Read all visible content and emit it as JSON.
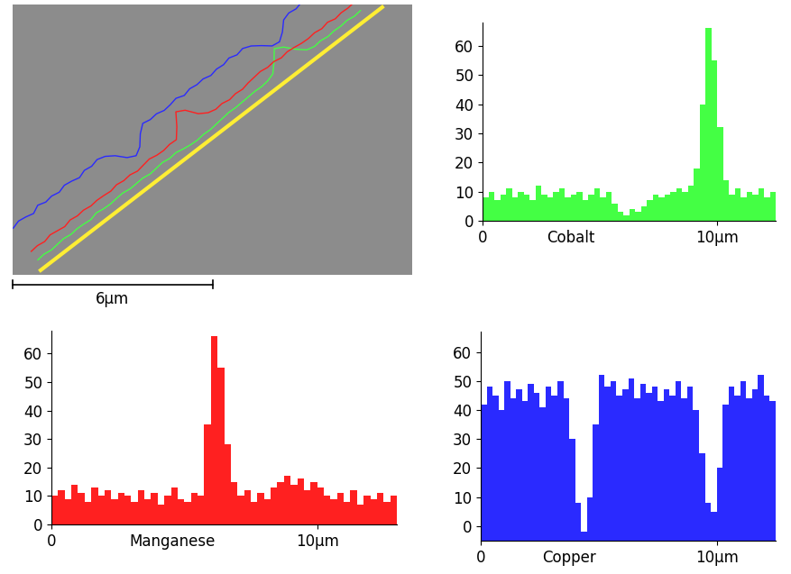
{
  "image": {
    "width": 12,
    "scale_bar": {
      "label": "6μm",
      "length": 6
    }
  },
  "chart_data": [
    {
      "type": "histogram",
      "xlabel": "Cobalt",
      "color": "#44ff44",
      "bins": [
        0,
        0.25,
        0.5,
        0.75,
        1,
        1.25,
        1.5,
        1.75,
        2,
        2.25,
        2.5,
        2.75,
        3,
        3.25,
        3.5,
        3.75,
        4,
        4.25,
        4.5,
        4.75,
        5,
        5.25,
        5.5,
        5.75,
        6,
        6.25,
        6.5,
        6.75,
        7,
        7.25,
        7.5,
        7.75,
        8,
        8.25,
        8.5,
        8.75,
        9,
        9.25,
        9.5,
        9.75,
        10,
        10.25,
        10.5,
        10.75,
        11,
        11.25,
        11.5,
        11.75,
        12,
        12.25,
        12.5
      ],
      "counts": [
        8,
        10,
        7,
        9,
        11,
        8,
        10,
        9,
        7,
        12,
        9,
        8,
        10,
        11,
        8,
        9,
        10,
        7,
        9,
        11,
        8,
        10,
        6,
        3,
        2,
        4,
        3,
        5,
        7,
        9,
        8,
        9,
        10,
        11,
        10,
        12,
        18,
        40,
        66,
        55,
        32,
        14,
        9,
        11,
        8,
        10,
        9,
        11,
        8,
        10
      ],
      "xlim": [
        0,
        12.5
      ],
      "xticks": [
        0,
        {
          "value": 10,
          "label": "10μm"
        }
      ],
      "ylim": [
        0,
        68
      ],
      "yticks": [
        0,
        10,
        20,
        30,
        40,
        50,
        60
      ]
    },
    {
      "type": "histogram",
      "xlabel": "Manganese",
      "color": "#ff2020",
      "bins": [
        0,
        0.25,
        0.5,
        0.75,
        1,
        1.25,
        1.5,
        1.75,
        2,
        2.25,
        2.5,
        2.75,
        3,
        3.25,
        3.5,
        3.75,
        4,
        4.25,
        4.5,
        4.75,
        5,
        5.25,
        5.5,
        5.75,
        6,
        6.25,
        6.5,
        6.75,
        7,
        7.25,
        7.5,
        7.75,
        8,
        8.25,
        8.5,
        8.75,
        9,
        9.25,
        9.5,
        9.75,
        10,
        10.25,
        10.5,
        10.75,
        11,
        11.25,
        11.5,
        11.75,
        12,
        12.25,
        12.5,
        12.75,
        13
      ],
      "counts": [
        10,
        12,
        9,
        14,
        11,
        8,
        13,
        10,
        12,
        9,
        11,
        10,
        8,
        12,
        9,
        11,
        7,
        10,
        13,
        9,
        8,
        11,
        10,
        35,
        66,
        55,
        28,
        15,
        10,
        12,
        8,
        11,
        9,
        13,
        15,
        17,
        14,
        16,
        12,
        15,
        13,
        10,
        9,
        11,
        8,
        12,
        7,
        10,
        9,
        11,
        8,
        10
      ],
      "xlim": [
        0,
        13
      ],
      "xticks": [
        0,
        {
          "value": 10,
          "label": "10μm"
        }
      ],
      "ylim": [
        0,
        68
      ],
      "yticks": [
        0,
        10,
        20,
        30,
        40,
        50,
        60
      ]
    },
    {
      "type": "histogram",
      "xlabel": "Copper",
      "color": "#2a2aff",
      "bins": [
        0,
        0.25,
        0.5,
        0.75,
        1,
        1.25,
        1.5,
        1.75,
        2,
        2.25,
        2.5,
        2.75,
        3,
        3.25,
        3.5,
        3.75,
        4,
        4.25,
        4.5,
        4.75,
        5,
        5.25,
        5.5,
        5.75,
        6,
        6.25,
        6.5,
        6.75,
        7,
        7.25,
        7.5,
        7.75,
        8,
        8.25,
        8.5,
        8.75,
        9,
        9.25,
        9.5,
        9.75,
        10,
        10.25,
        10.5,
        10.75,
        11,
        11.25,
        11.5,
        11.75,
        12,
        12.25,
        12.5
      ],
      "counts": [
        42,
        48,
        45,
        40,
        50,
        44,
        47,
        43,
        49,
        46,
        41,
        48,
        45,
        50,
        44,
        30,
        8,
        -2,
        10,
        35,
        52,
        48,
        50,
        45,
        47,
        51,
        44,
        49,
        46,
        48,
        43,
        47,
        45,
        50,
        44,
        48,
        40,
        25,
        8,
        5,
        20,
        42,
        48,
        45,
        50,
        44,
        47,
        52,
        45,
        43
      ],
      "xlim": [
        0,
        12.5
      ],
      "xticks": [
        0,
        {
          "value": 10,
          "label": "10μm"
        }
      ],
      "ylim": [
        -5,
        67
      ],
      "yticks": [
        0,
        10,
        20,
        30,
        40,
        50,
        60
      ]
    }
  ]
}
